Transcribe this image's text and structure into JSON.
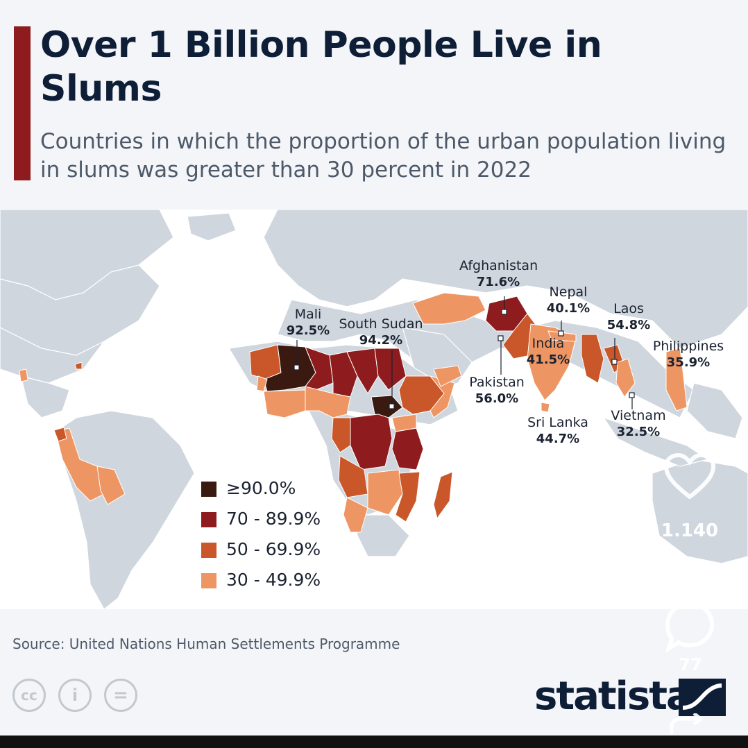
{
  "title": "Over 1 Billion People Live in Slums",
  "subtitle": "Countries in which the proportion of the urban population living in slums was greater than 30 percent in 2022",
  "colors": {
    "accent": "#8e1c1e",
    "land": "#cfd6de",
    "bin_90": "#3a1a10",
    "bin_70": "#8e1c1e",
    "bin_50": "#c9572a",
    "bin_30": "#ee9663"
  },
  "legend": [
    {
      "label": "≥90.0%",
      "color": "#3a1a10"
    },
    {
      "label": "70 - 89.9%",
      "color": "#8e1c1e"
    },
    {
      "label": "50 - 69.9%",
      "color": "#c9572a"
    },
    {
      "label": "30 - 49.9%",
      "color": "#ee9663"
    }
  ],
  "callouts": [
    {
      "country": "Mali",
      "value": "92.5%"
    },
    {
      "country": "South Sudan",
      "value": "94.2%"
    },
    {
      "country": "Afghanistan",
      "value": "71.6%"
    },
    {
      "country": "Nepal",
      "value": "40.1%"
    },
    {
      "country": "Laos",
      "value": "54.8%"
    },
    {
      "country": "India",
      "value": "41.5%"
    },
    {
      "country": "Philippines",
      "value": "35.9%"
    },
    {
      "country": "Pakistan",
      "value": "56.0%"
    },
    {
      "country": "Sri Lanka",
      "value": "44.7%"
    },
    {
      "country": "Vietnam",
      "value": "32.5%"
    }
  ],
  "source": "Source: United Nations Human Settlements Programme",
  "license_icons": [
    {
      "name": "cc-icon",
      "glyph": "cc"
    },
    {
      "name": "attribution-icon",
      "glyph": "i"
    },
    {
      "name": "no-derivatives-icon",
      "glyph": "="
    }
  ],
  "brand": "statista",
  "overlay": {
    "likes": "1.140",
    "comments": "77",
    "icons": [
      "heart-icon",
      "comment-icon",
      "share-icon"
    ]
  }
}
